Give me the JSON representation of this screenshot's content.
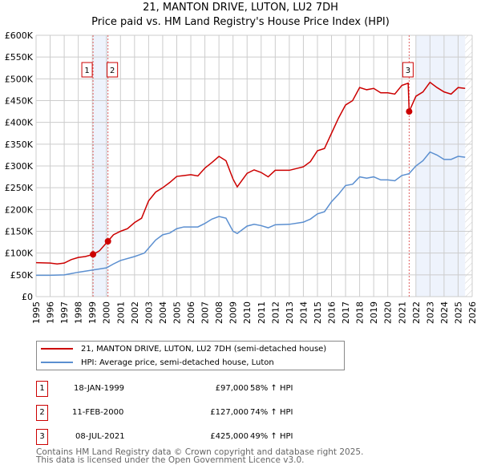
{
  "chart_data": {
    "type": "line",
    "title": "21, MANTON DRIVE, LUTON, LU2 7DH",
    "subtitle": "Price paid vs. HM Land Registry's House Price Index (HPI)",
    "xlim": [
      1995,
      2026
    ],
    "ylim": [
      0,
      600000
    ],
    "x_ticks": [
      "1995",
      "1996",
      "1997",
      "1998",
      "1999",
      "2000",
      "2001",
      "2002",
      "2003",
      "2004",
      "2005",
      "2006",
      "2007",
      "2008",
      "2009",
      "2010",
      "2011",
      "2012",
      "2013",
      "2014",
      "2015",
      "2016",
      "2017",
      "2018",
      "2019",
      "2020",
      "2021",
      "2022",
      "2023",
      "2024",
      "2025",
      "2026"
    ],
    "y_ticks": [
      {
        "v": 0,
        "label": "£0"
      },
      {
        "v": 50000,
        "label": "£50K"
      },
      {
        "v": 100000,
        "label": "£100K"
      },
      {
        "v": 150000,
        "label": "£150K"
      },
      {
        "v": 200000,
        "label": "£200K"
      },
      {
        "v": 250000,
        "label": "£250K"
      },
      {
        "v": 300000,
        "label": "£300K"
      },
      {
        "v": 350000,
        "label": "£350K"
      },
      {
        "v": 400000,
        "label": "£400K"
      },
      {
        "v": 450000,
        "label": "£450K"
      },
      {
        "v": 500000,
        "label": "£500K"
      },
      {
        "v": 550000,
        "label": "£550K"
      },
      {
        "v": 600000,
        "label": "£600K"
      }
    ],
    "grid": true,
    "series": [
      {
        "name": "21, MANTON DRIVE, LUTON, LU2 7DH (semi-detached house)",
        "color": "#cc0000",
        "points": [
          [
            1995,
            78
          ],
          [
            1996,
            77
          ],
          [
            1996.5,
            75
          ],
          [
            1997,
            77
          ],
          [
            1997.5,
            85
          ],
          [
            1998,
            90
          ],
          [
            1998.5,
            92
          ],
          [
            1999.05,
            97
          ],
          [
            1999.5,
            105
          ],
          [
            2000.1,
            127
          ],
          [
            2000.5,
            142
          ],
          [
            2001,
            150
          ],
          [
            2001.5,
            156
          ],
          [
            2002,
            170
          ],
          [
            2002.5,
            180
          ],
          [
            2003,
            220
          ],
          [
            2003.5,
            240
          ],
          [
            2004,
            250
          ],
          [
            2004.5,
            262
          ],
          [
            2005,
            276
          ],
          [
            2005.5,
            278
          ],
          [
            2006,
            280
          ],
          [
            2006.5,
            277
          ],
          [
            2007,
            295
          ],
          [
            2007.5,
            308
          ],
          [
            2008,
            322
          ],
          [
            2008.5,
            312
          ],
          [
            2009,
            270
          ],
          [
            2009.3,
            252
          ],
          [
            2010,
            283
          ],
          [
            2010.5,
            291
          ],
          [
            2011,
            285
          ],
          [
            2011.5,
            275
          ],
          [
            2012,
            290
          ],
          [
            2013,
            290
          ],
          [
            2014,
            298
          ],
          [
            2014.5,
            310
          ],
          [
            2015,
            335
          ],
          [
            2015.5,
            340
          ],
          [
            2016,
            375
          ],
          [
            2016.5,
            410
          ],
          [
            2017,
            440
          ],
          [
            2017.5,
            450
          ],
          [
            2018,
            480
          ],
          [
            2018.5,
            475
          ],
          [
            2019,
            478
          ],
          [
            2019.5,
            468
          ],
          [
            2020,
            468
          ],
          [
            2020.5,
            465
          ],
          [
            2021,
            485
          ],
          [
            2021.45,
            490
          ],
          [
            2021.52,
            425
          ],
          [
            2022,
            460
          ],
          [
            2022.5,
            470
          ],
          [
            2023,
            492
          ],
          [
            2023.5,
            480
          ],
          [
            2024,
            470
          ],
          [
            2024.5,
            465
          ],
          [
            2025,
            480
          ],
          [
            2025.5,
            478
          ]
        ]
      },
      {
        "name": "HPI: Average price, semi-detached house, Luton",
        "color": "#5b8fd0",
        "points": [
          [
            1995,
            49
          ],
          [
            1996,
            49
          ],
          [
            1997,
            50
          ],
          [
            1997.5,
            53
          ],
          [
            1998,
            56
          ],
          [
            1999,
            61
          ],
          [
            2000,
            66
          ],
          [
            2000.5,
            75
          ],
          [
            2001,
            83
          ],
          [
            2002,
            92
          ],
          [
            2002.7,
            100
          ],
          [
            2003.5,
            130
          ],
          [
            2004,
            142
          ],
          [
            2004.5,
            146
          ],
          [
            2005,
            156
          ],
          [
            2005.5,
            160
          ],
          [
            2006,
            160
          ],
          [
            2006.5,
            160
          ],
          [
            2007,
            168
          ],
          [
            2007.5,
            178
          ],
          [
            2008,
            184
          ],
          [
            2008.5,
            180
          ],
          [
            2009,
            150
          ],
          [
            2009.3,
            145
          ],
          [
            2010,
            162
          ],
          [
            2010.5,
            166
          ],
          [
            2011,
            163
          ],
          [
            2011.5,
            158
          ],
          [
            2012,
            165
          ],
          [
            2013,
            166
          ],
          [
            2014,
            171
          ],
          [
            2014.5,
            178
          ],
          [
            2015,
            190
          ],
          [
            2015.5,
            195
          ],
          [
            2016,
            218
          ],
          [
            2016.5,
            235
          ],
          [
            2017,
            255
          ],
          [
            2017.5,
            258
          ],
          [
            2018,
            275
          ],
          [
            2018.5,
            272
          ],
          [
            2019,
            275
          ],
          [
            2019.5,
            268
          ],
          [
            2020,
            268
          ],
          [
            2020.5,
            266
          ],
          [
            2021,
            278
          ],
          [
            2021.5,
            282
          ],
          [
            2022,
            300
          ],
          [
            2022.5,
            312
          ],
          [
            2023,
            332
          ],
          [
            2023.5,
            325
          ],
          [
            2024,
            315
          ],
          [
            2024.5,
            315
          ],
          [
            2025,
            322
          ],
          [
            2025.5,
            320
          ]
        ]
      }
    ],
    "sales": [
      {
        "id": "1",
        "x": 1999.05,
        "price": 97000,
        "date": "18-JAN-1999",
        "price_label": "£97,000",
        "hpi": "58% ↑ HPI"
      },
      {
        "id": "2",
        "x": 2000.11,
        "price": 127000,
        "date": "11-FEB-2000",
        "price_label": "£127,000",
        "hpi": "74% ↑ HPI"
      },
      {
        "id": "3",
        "x": 2021.52,
        "price": 425000,
        "date": "08-JUL-2021",
        "price_label": "£425,000",
        "hpi": "49% ↑ HPI"
      }
    ],
    "shaded": [
      [
        1999.05,
        2000.11
      ],
      [
        2022.0,
        2025.5
      ]
    ],
    "hatched": [
      2025.5,
      2026
    ],
    "legend_position": "below"
  },
  "footer": [
    "Contains HM Land Registry data © Crown copyright and database right 2025.",
    "This data is licensed under the Open Government Licence v3.0."
  ]
}
